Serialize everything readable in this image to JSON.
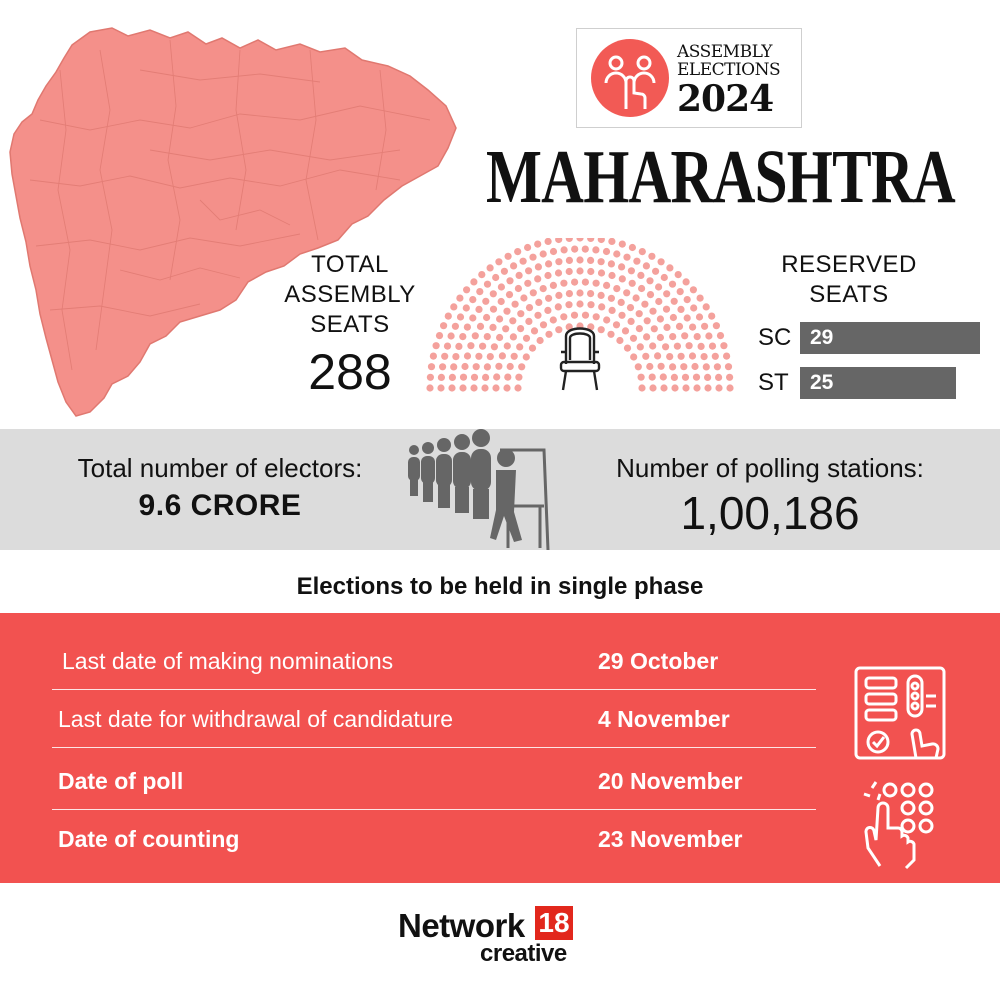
{
  "colors": {
    "map_fill": "#f4908a",
    "accent_red": "#f25250",
    "seat_dot": "#f4a19c",
    "bar_gray": "#666666",
    "band_gray": "#dcdcdc",
    "brand_red": "#e2271c"
  },
  "logo": {
    "line1": "ASSEMBLY",
    "line2": "ELECTIONS",
    "year": "2024",
    "icon": "voting-hand-icon"
  },
  "state_name": "MAHARASHTRA",
  "total_seats": {
    "label": "TOTAL ASSEMBLY SEATS",
    "value": "288",
    "icon": "chair-icon"
  },
  "reserved_seats": {
    "label": "RESERVED SEATS",
    "sc": {
      "code": "SC",
      "value": "29"
    },
    "st": {
      "code": "ST",
      "value": "25"
    }
  },
  "electors": {
    "label": "Total number of electors:",
    "value": "9.6 CRORE"
  },
  "polling_stations": {
    "label": "Number of polling stations:",
    "value": "1,00,186"
  },
  "phase_note": "Elections to be held in single phase",
  "schedule": [
    {
      "label": "Last date of making nominations",
      "date": "29 October"
    },
    {
      "label": "Last date for withdrawal of candidature",
      "date": "4 November"
    },
    {
      "label": "Date of poll",
      "date": "20 November"
    },
    {
      "label": "Date of counting",
      "date": "23 November"
    }
  ],
  "brand": {
    "name": "Network",
    "number": "18",
    "sub": "creative"
  }
}
